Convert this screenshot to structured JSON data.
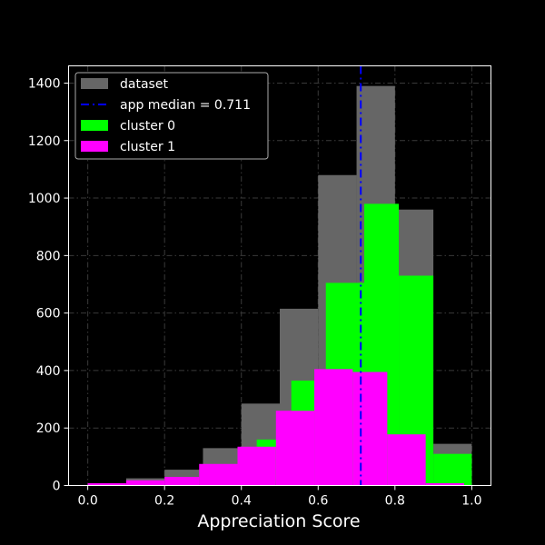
{
  "chart_data": {
    "type": "bar",
    "title": "",
    "xlabel": "Appreciation Score",
    "ylabel": "",
    "xlim": [
      -0.05,
      1.05
    ],
    "ylim": [
      0,
      1460
    ],
    "xticks": [
      0.0,
      0.2,
      0.4,
      0.6,
      0.8,
      1.0
    ],
    "xtick_labels": [
      "0.0",
      "0.2",
      "0.4",
      "0.6",
      "0.8",
      "1.0"
    ],
    "yticks": [
      0,
      200,
      400,
      600,
      800,
      1000,
      1200,
      1400
    ],
    "ytick_labels": [
      "0",
      "200",
      "400",
      "600",
      "800",
      "1000",
      "1200",
      "1400"
    ],
    "grid": true,
    "legend_position": "top-left",
    "background": "#000000",
    "series": [
      {
        "name": "dataset",
        "color": "#666666",
        "bins": [
          {
            "x0": 0.0,
            "x1": 0.1,
            "value": 5
          },
          {
            "x0": 0.1,
            "x1": 0.2,
            "value": 25
          },
          {
            "x0": 0.2,
            "x1": 0.3,
            "value": 55
          },
          {
            "x0": 0.3,
            "x1": 0.4,
            "value": 130
          },
          {
            "x0": 0.4,
            "x1": 0.5,
            "value": 285
          },
          {
            "x0": 0.5,
            "x1": 0.6,
            "value": 615
          },
          {
            "x0": 0.6,
            "x1": 0.7,
            "value": 1080
          },
          {
            "x0": 0.7,
            "x1": 0.8,
            "value": 1390
          },
          {
            "x0": 0.8,
            "x1": 0.9,
            "value": 960
          },
          {
            "x0": 0.9,
            "x1": 1.0,
            "value": 145
          }
        ]
      },
      {
        "name": "cluster 0",
        "color": "#00ff00",
        "bins": [
          {
            "x0": 0.44,
            "x1": 0.53,
            "value": 160
          },
          {
            "x0": 0.53,
            "x1": 0.62,
            "value": 365
          },
          {
            "x0": 0.62,
            "x1": 0.72,
            "value": 705
          },
          {
            "x0": 0.72,
            "x1": 0.81,
            "value": 980
          },
          {
            "x0": 0.81,
            "x1": 0.9,
            "value": 730
          },
          {
            "x0": 0.9,
            "x1": 1.0,
            "value": 110
          }
        ]
      },
      {
        "name": "cluster 1",
        "color": "#ff00ff",
        "bins": [
          {
            "x0": 0.0,
            "x1": 0.1,
            "value": 8
          },
          {
            "x0": 0.1,
            "x1": 0.2,
            "value": 18
          },
          {
            "x0": 0.2,
            "x1": 0.29,
            "value": 30
          },
          {
            "x0": 0.29,
            "x1": 0.39,
            "value": 75
          },
          {
            "x0": 0.39,
            "x1": 0.49,
            "value": 135
          },
          {
            "x0": 0.49,
            "x1": 0.59,
            "value": 260
          },
          {
            "x0": 0.59,
            "x1": 0.69,
            "value": 405
          },
          {
            "x0": 0.69,
            "x1": 0.78,
            "value": 395
          },
          {
            "x0": 0.78,
            "x1": 0.88,
            "value": 178
          },
          {
            "x0": 0.88,
            "x1": 0.98,
            "value": 8
          }
        ]
      }
    ],
    "median_line": {
      "label": "app median = 0.711",
      "x": 0.711,
      "color": "#0000ff"
    },
    "legend": [
      {
        "label": "dataset",
        "kind": "patch",
        "color": "#666666"
      },
      {
        "label": "app median = 0.711",
        "kind": "line",
        "color": "#0000ff"
      },
      {
        "label": "cluster 0",
        "kind": "patch",
        "color": "#00ff00"
      },
      {
        "label": "cluster 1",
        "kind": "patch",
        "color": "#ff00ff"
      }
    ]
  }
}
